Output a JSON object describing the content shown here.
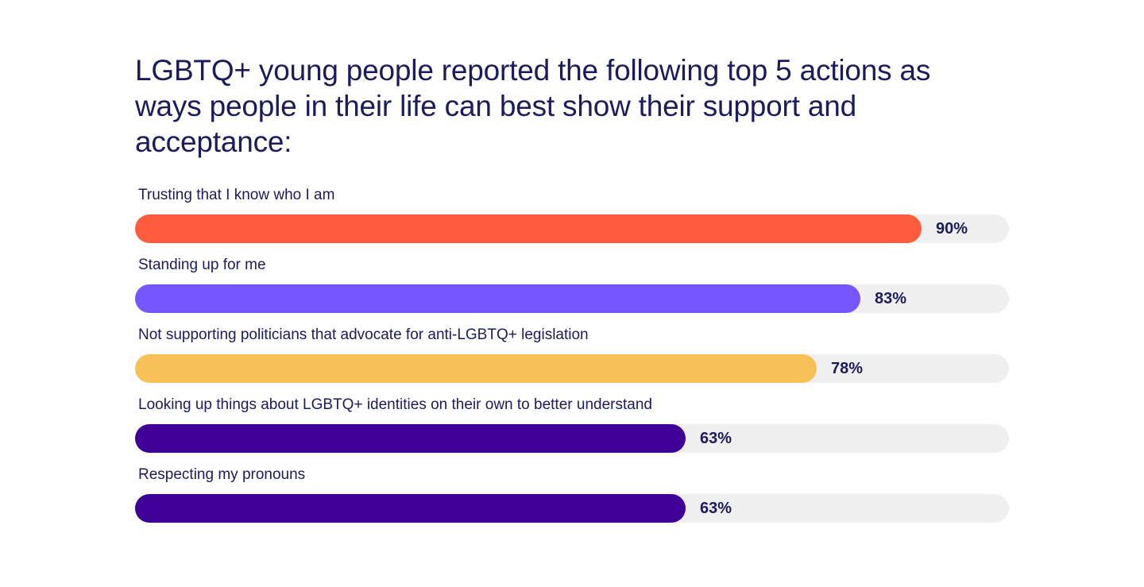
{
  "title": "LGBTQ+ young people reported the following top 5 actions as ways people in their life can best show their support and acceptance:",
  "chart_data": {
    "type": "bar",
    "orientation": "horizontal",
    "title": "LGBTQ+ young people reported the following top 5 actions as ways people in their life can best show their support and acceptance:",
    "categories": [
      "Trusting that I know who I am",
      "Standing up for me",
      "Not supporting politicians that advocate for anti-LGBTQ+ legislation",
      "Looking up things about LGBTQ+ identities on their own to better understand",
      "Respecting my pronouns"
    ],
    "values": [
      90,
      83,
      78,
      63,
      63
    ],
    "value_labels": [
      "90%",
      "83%",
      "78%",
      "63%",
      "63%"
    ],
    "bar_colors": [
      "#ff5b3f",
      "#7657ff",
      "#f8c157",
      "#3f0097",
      "#3f0097"
    ],
    "track_color": "#efefef",
    "xlim": [
      0,
      100
    ],
    "grid": false,
    "legend": "none"
  }
}
